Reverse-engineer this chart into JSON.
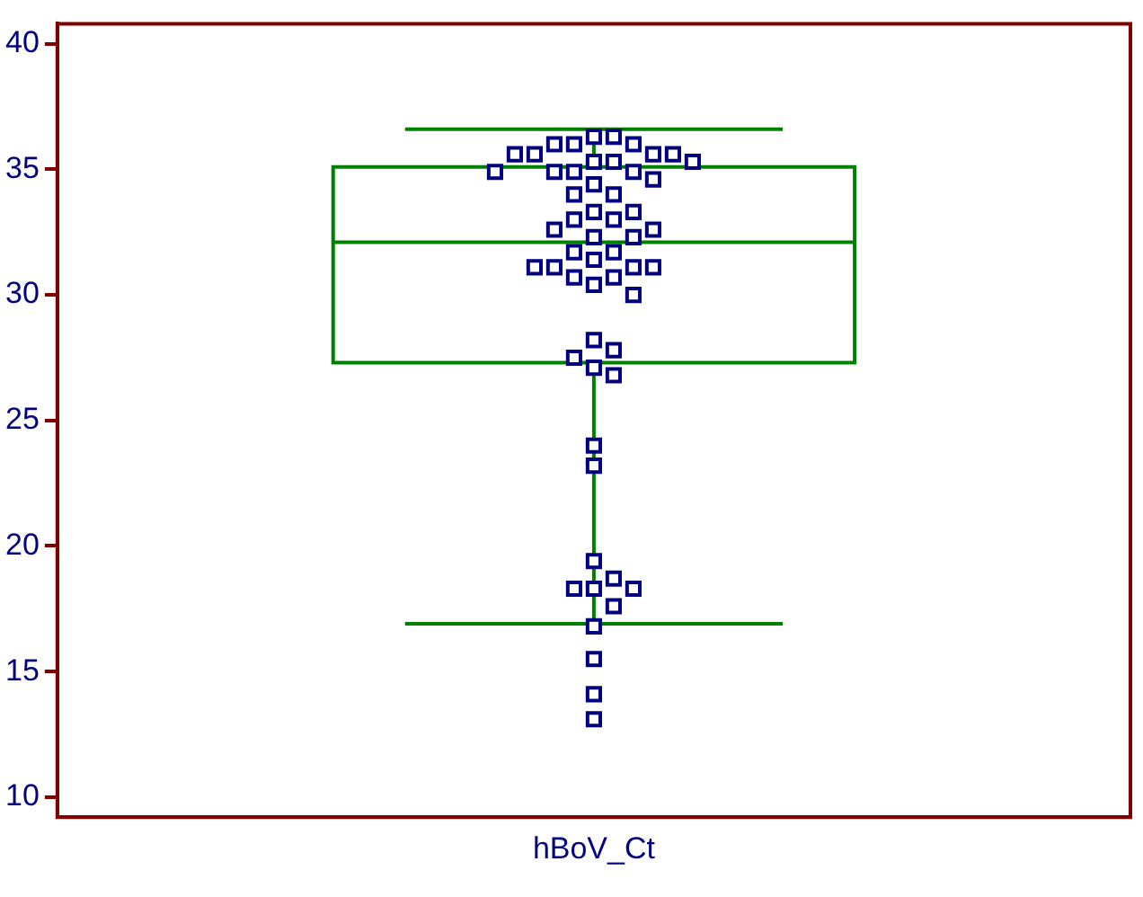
{
  "chart_data": {
    "type": "box",
    "categories": [
      "hBoV_Ct"
    ],
    "ylim": [
      9.2,
      40.8
    ],
    "yticks": [
      10,
      15,
      20,
      25,
      30,
      35,
      40
    ],
    "grid": false,
    "legend": false,
    "marker": "square",
    "series": [
      {
        "color": "#008000",
        "boxes": [
          {
            "low": 16.9,
            "q1": 27.3,
            "median": 32.1,
            "q3": 35.1,
            "high": 36.6
          }
        ]
      },
      {
        "type": "scatter",
        "color": "#000080",
        "x": [
          "hBoV_Ct",
          "hBoV_Ct",
          "hBoV_Ct",
          "hBoV_Ct",
          "hBoV_Ct",
          "hBoV_Ct",
          "hBoV_Ct",
          "hBoV_Ct",
          "hBoV_Ct",
          "hBoV_Ct",
          "hBoV_Ct",
          "hBoV_Ct",
          "hBoV_Ct",
          "hBoV_Ct",
          "hBoV_Ct",
          "hBoV_Ct",
          "hBoV_Ct",
          "hBoV_Ct",
          "hBoV_Ct",
          "hBoV_Ct",
          "hBoV_Ct",
          "hBoV_Ct",
          "hBoV_Ct",
          "hBoV_Ct",
          "hBoV_Ct",
          "hBoV_Ct",
          "hBoV_Ct",
          "hBoV_Ct",
          "hBoV_Ct",
          "hBoV_Ct",
          "hBoV_Ct",
          "hBoV_Ct",
          "hBoV_Ct",
          "hBoV_Ct",
          "hBoV_Ct",
          "hBoV_Ct",
          "hBoV_Ct",
          "hBoV_Ct",
          "hBoV_Ct",
          "hBoV_Ct",
          "hBoV_Ct",
          "hBoV_Ct",
          "hBoV_Ct",
          "hBoV_Ct",
          "hBoV_Ct",
          "hBoV_Ct",
          "hBoV_Ct",
          "hBoV_Ct",
          "hBoV_Ct",
          "hBoV_Ct",
          "hBoV_Ct",
          "hBoV_Ct",
          "hBoV_Ct"
        ],
        "values": [
          36.3,
          36.3,
          36,
          36,
          36,
          35.6,
          35.6,
          35.6,
          35.6,
          35.3,
          35.3,
          35.3,
          34.9,
          34.9,
          34.9,
          34.9,
          34.6,
          34.4,
          34,
          34,
          33.3,
          33.3,
          33,
          33,
          32.6,
          32.6,
          32.3,
          32.3,
          31.7,
          31.7,
          31.4,
          31.1,
          31.1,
          31.1,
          31.1,
          30.7,
          30.7,
          30.4,
          30,
          28.2,
          27.8,
          27.5,
          27.1,
          26.8,
          24,
          23.2,
          19.4,
          18.7,
          18.3,
          18.3,
          18.3,
          17.6,
          16.8
        ]
      },
      {
        "type": "scatter",
        "color": "#000080",
        "x": [
          "hBoV_Ct",
          "hBoV_Ct",
          "hBoV_Ct"
        ],
        "values": [
          15.5,
          14.1,
          13.1
        ]
      }
    ]
  }
}
